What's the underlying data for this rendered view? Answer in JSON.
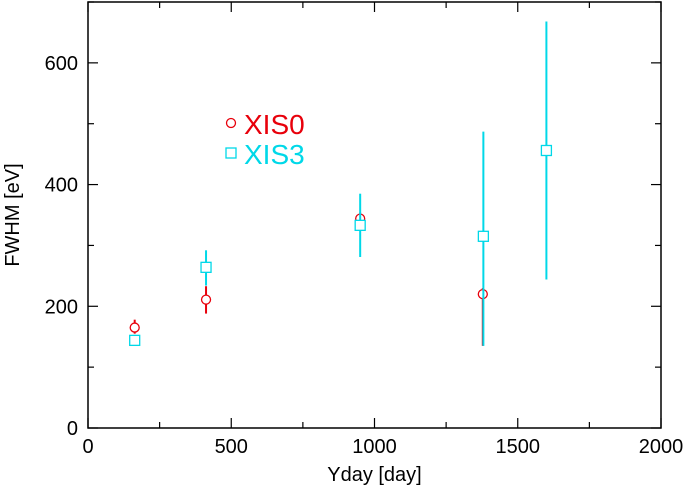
{
  "chart_data": {
    "type": "scatter",
    "title": "",
    "xlabel": "Yday [day]",
    "ylabel": "FWHM [eV]",
    "xlim": [
      0,
      2000
    ],
    "ylim": [
      0,
      700
    ],
    "x_ticks": [
      0,
      500,
      1000,
      1500,
      2000
    ],
    "y_ticks": [
      0,
      200,
      400,
      600
    ],
    "x_tick_labels": [
      "0",
      "500",
      "1000",
      "1500",
      "2000"
    ],
    "y_tick_labels": [
      "0",
      "200",
      "400",
      "600"
    ],
    "grid": false,
    "legend_position": "upper-left-inside",
    "series": [
      {
        "name": "XIS0",
        "color": "#e8000b",
        "marker": "circle",
        "points": [
          {
            "x": 163,
            "y": 165,
            "err_lo": 10,
            "err_hi": 13
          },
          {
            "x": 412,
            "y": 211,
            "err_lo": 23,
            "err_hi": 22
          },
          {
            "x": 950,
            "y": 344,
            "err_lo": 10,
            "err_hi": 10
          },
          {
            "x": 1378,
            "y": 220,
            "err_lo": 85,
            "err_hi": 10
          }
        ]
      },
      {
        "name": "XIS3",
        "color": "#00d8e8",
        "marker": "square",
        "points": [
          {
            "x": 163,
            "y": 144,
            "err_lo": 9,
            "err_hi": 9
          },
          {
            "x": 412,
            "y": 264,
            "err_lo": 30,
            "err_hi": 28
          },
          {
            "x": 950,
            "y": 333,
            "err_lo": 52,
            "err_hi": 52
          },
          {
            "x": 1380,
            "y": 315,
            "err_lo": 180,
            "err_hi": 172
          },
          {
            "x": 1600,
            "y": 456,
            "err_lo": 212,
            "err_hi": 212
          }
        ]
      }
    ]
  }
}
